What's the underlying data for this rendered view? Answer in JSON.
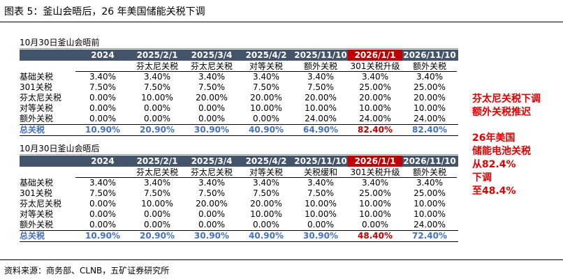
{
  "header": {
    "title": "图表 5：釜山会晤后，26 年美国储能关税下调"
  },
  "tables": [
    {
      "caption": "10月30日釜山会晤前",
      "columns": [
        "2024",
        "2025/2/1",
        "2025/3/4",
        "2025/4/2",
        "2025/11/10",
        "2026/1/1",
        "2026/11/10"
      ],
      "subheaders": [
        "芬太尼关税",
        "芬太尼关税",
        "对等关税",
        "额外关税",
        "301关税升级",
        "额外关税"
      ],
      "rows": [
        [
          "基础关税",
          "3.40%",
          "3.40%",
          "3.40%",
          "3.40%",
          "3.40%",
          "3.40%",
          "3.40%"
        ],
        [
          "301关税",
          "7.50%",
          "7.50%",
          "7.50%",
          "7.50%",
          "7.50%",
          "25.00%",
          "25.00%"
        ],
        [
          "芬太尼关税",
          "0.00%",
          "10.00%",
          "20.00%",
          "20.00%",
          "20.00%",
          "20.00%",
          "20.00%"
        ],
        [
          "对等关税",
          "0.00%",
          "0.00%",
          "0.00%",
          "10.00%",
          "10.00%",
          "10.00%",
          "10.00%"
        ],
        [
          "额外关税",
          "0.00%",
          "0.00%",
          "0.00%",
          "0.00%",
          "24.00%",
          "24.00%",
          "24.00%"
        ]
      ],
      "total": [
        "总关税",
        "10.90%",
        "20.90%",
        "30.90%",
        "40.90%",
        "64.90%",
        "82.40%",
        "82.40%"
      ]
    },
    {
      "caption": "10月30日釜山会晤后",
      "columns": [
        "2024",
        "2025/2/1",
        "2025/3/4",
        "2025/4/2",
        "2025/11/10",
        "2026/1/1",
        "2026/11/10"
      ],
      "subheaders": [
        "芬太尼关税",
        "芬太尼关税",
        "对等关税",
        "关税缓和",
        "301关税升级",
        "额外关税"
      ],
      "rows": [
        [
          "基础关税",
          "3.40%",
          "3.40%",
          "3.40%",
          "3.40%",
          "3.40%",
          "3.40%",
          "3.40%"
        ],
        [
          "301关税",
          "7.50%",
          "7.50%",
          "7.50%",
          "7.50%",
          "7.50%",
          "25.00%",
          "25.00%"
        ],
        [
          "芬太尼关税",
          "0.00%",
          "10.00%",
          "20.00%",
          "20.00%",
          "10.00%",
          "10.00%",
          "10.00%"
        ],
        [
          "对等关税",
          "0.00%",
          "0.00%",
          "0.00%",
          "10.00%",
          "10.00%",
          "10.00%",
          "10.00%"
        ],
        [
          "额外关税",
          "0.00%",
          "0.00%",
          "0.00%",
          "0.00%",
          "0.00%",
          "0.00%",
          "24.00%"
        ]
      ],
      "total": [
        "总关税",
        "10.90%",
        "20.90%",
        "30.90%",
        "40.90%",
        "30.90%",
        "48.40%",
        "72.40%"
      ]
    }
  ],
  "notes": [
    [
      "芬太尼关税下调",
      "额外关税推迟"
    ],
    [
      "26年美国",
      "储能电池关税",
      "从82.4%",
      "下调",
      "至48.4%"
    ]
  ],
  "source": "资料来源：商务部、CLNB，五矿证券研究所"
}
